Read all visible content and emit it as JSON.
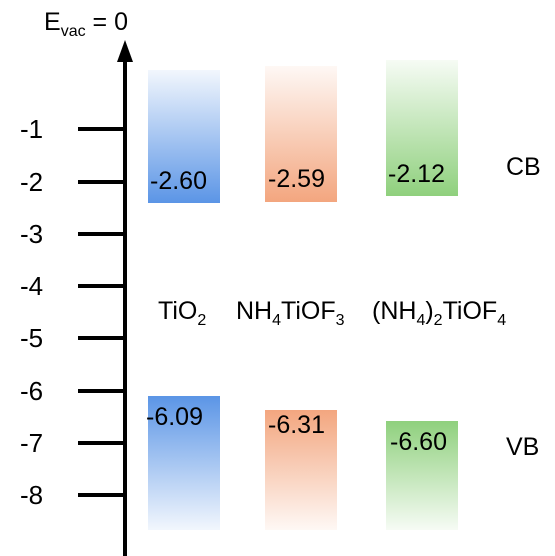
{
  "axis": {
    "title_main": "E",
    "title_sub": "vac",
    "title_rest": " = 0",
    "ticks": [
      "-1",
      "-2",
      "-3",
      "-4",
      "-5",
      "-6",
      "-7",
      "-8"
    ]
  },
  "bands": {
    "cb_label": "CB",
    "vb_label": "VB"
  },
  "materials": [
    {
      "formula_parts": [
        "TiO",
        "2",
        ""
      ],
      "cb": "-2.60",
      "vb": "-6.09",
      "cb_value": -2.6,
      "vb_value": -6.09,
      "color": "#5b95e6"
    },
    {
      "formula_parts": [
        "NH",
        "4",
        "TiOF",
        "3",
        ""
      ],
      "cb": "-2.59",
      "vb": "-6.31",
      "cb_value": -2.59,
      "vb_value": -6.31,
      "color": "#f3a67f"
    },
    {
      "formula_parts": [
        "(NH",
        "4",
        ")",
        "2",
        "TiOF",
        "4",
        ""
      ],
      "cb": "-2.12",
      "vb": "-6.60",
      "cb_value": -2.12,
      "vb_value": -6.6,
      "color": "#8fd07d"
    }
  ]
}
